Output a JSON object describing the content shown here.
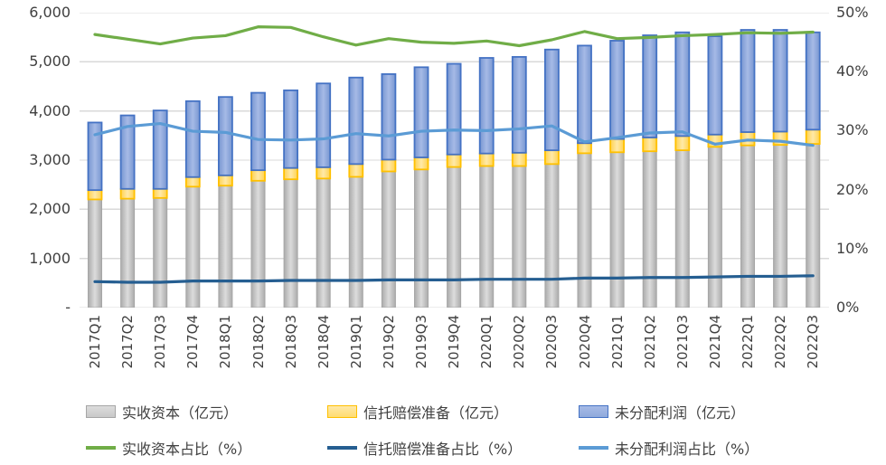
{
  "chart_data": {
    "type": "combo-stacked-bar-line",
    "title": "",
    "categories": [
      "2017Q1",
      "2017Q2",
      "2017Q3",
      "2017Q4",
      "2018Q1",
      "2018Q2",
      "2018Q3",
      "2018Q4",
      "2019Q1",
      "2019Q2",
      "2019Q3",
      "2019Q4",
      "2020Q1",
      "2020Q2",
      "2020Q3",
      "2020Q4",
      "2021Q1",
      "2021Q2",
      "2021Q3",
      "2021Q4",
      "2022Q1",
      "2022Q2",
      "2022Q3"
    ],
    "left_axis": {
      "title": "",
      "min": 0,
      "max": 6000,
      "tick_step": 1000,
      "tick_labels": [
        "6,000",
        "5,000",
        "4,000",
        "3,000",
        "2,000",
        "1,000",
        "-"
      ]
    },
    "right_axis": {
      "title": "",
      "min": 0,
      "max": 50,
      "tick_step": 10,
      "tick_labels": [
        "50%",
        "40%",
        "30%",
        "20%",
        "10%",
        "0%"
      ]
    },
    "grid": true,
    "legend_position": "bottom",
    "series": [
      {
        "key": "paid-in-capital",
        "name": "实收资本（亿元）",
        "type": "bar-stacked",
        "axis": "left",
        "fill": "#C9C9C9",
        "fill_light": "#DCDCDC",
        "fill_dark": "#ABABAB",
        "border": "#A6A6A6",
        "values": [
          2200,
          2215,
          2230,
          2460,
          2480,
          2580,
          2610,
          2625,
          2660,
          2770,
          2810,
          2860,
          2880,
          2880,
          2920,
          3140,
          3160,
          3180,
          3200,
          3270,
          3300,
          3310,
          3330
        ]
      },
      {
        "key": "trust-compensation-reserve",
        "name": "信托赔偿准备（亿元）",
        "type": "bar-stacked",
        "axis": "left",
        "fill": "#FFDD71",
        "fill_light": "#FFE9A8",
        "fill_dark": "#FFD24F",
        "border": "#FFC000",
        "values": [
          190,
          200,
          185,
          195,
          210,
          215,
          230,
          230,
          260,
          240,
          245,
          255,
          255,
          270,
          280,
          205,
          270,
          280,
          290,
          250,
          270,
          270,
          290
        ]
      },
      {
        "key": "undistributed-profit",
        "name": "未分配利润（亿元）",
        "type": "bar-stacked",
        "axis": "left",
        "fill": "#8FAADC",
        "fill_light": "#A6BAE6",
        "fill_dark": "#7796D1",
        "border": "#4472C4",
        "values": [
          1375,
          1495,
          1595,
          1545,
          1595,
          1575,
          1580,
          1705,
          1760,
          1740,
          1835,
          1845,
          1945,
          1950,
          2050,
          1985,
          2000,
          2080,
          2110,
          2000,
          2080,
          2070,
          1980
        ]
      },
      {
        "key": "paid-in-capital-ratio",
        "name": "实收资本占比（%）",
        "type": "line",
        "axis": "right",
        "color": "#70AD47",
        "values": [
          46.3,
          45.5,
          44.7,
          45.7,
          46.1,
          47.6,
          47.5,
          45.9,
          44.5,
          45.6,
          45.0,
          44.8,
          45.2,
          44.4,
          45.4,
          46.8,
          45.6,
          45.8,
          46.1,
          46.3,
          46.6,
          46.5,
          46.7
        ]
      },
      {
        "key": "trust-compensation-reserve-ratio",
        "name": "信托赔偿准备占比（%）",
        "type": "line",
        "axis": "right",
        "color": "#255E91",
        "values": [
          4.4,
          4.3,
          4.3,
          4.5,
          4.5,
          4.5,
          4.6,
          4.6,
          4.6,
          4.7,
          4.7,
          4.7,
          4.8,
          4.8,
          4.8,
          5.0,
          5.0,
          5.1,
          5.1,
          5.2,
          5.3,
          5.3,
          5.4
        ]
      },
      {
        "key": "undistributed-profit-ratio",
        "name": "未分配利润占比（%）",
        "type": "line",
        "axis": "right",
        "color": "#5B9BD5",
        "values": [
          29.3,
          30.7,
          31.2,
          29.9,
          29.7,
          28.5,
          28.4,
          28.6,
          29.5,
          29.1,
          29.9,
          30.1,
          30.0,
          30.3,
          30.8,
          28.1,
          28.8,
          29.6,
          29.8,
          27.7,
          28.4,
          28.2,
          27.5
        ]
      }
    ],
    "colors": {
      "gridline": "#D9D9D9",
      "axis_text": "#404040",
      "background": "#FFFFFF"
    }
  }
}
